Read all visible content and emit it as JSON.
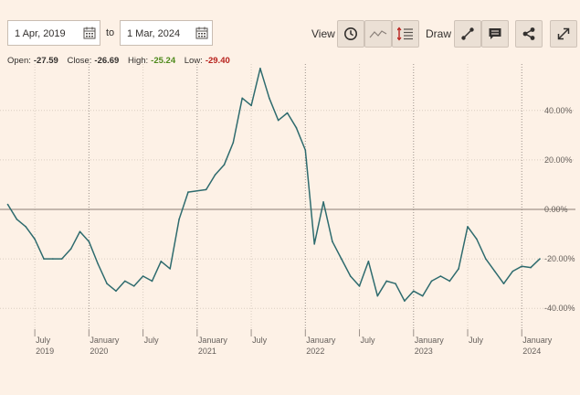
{
  "controls": {
    "date_from": "1 Apr, 2019",
    "to_label": "to",
    "date_to": "1 Mar, 2024",
    "view_label": "View",
    "draw_label": "Draw"
  },
  "ohlc": {
    "open_label": "Open:",
    "open": "-27.59",
    "close_label": "Close:",
    "close": "-26.69",
    "high_label": "High:",
    "high": "-25.24",
    "low_label": "Low:",
    "low": "-29.40"
  },
  "colors": {
    "background": "#fdf1e6",
    "line": "#2e6b6e",
    "high": "#4e8a1c",
    "low": "#b8221d",
    "zero_line": "#8a7d74"
  },
  "icons": [
    "calendar-icon",
    "clock-icon",
    "line-chart-icon",
    "indicators-icon",
    "draw-line-icon",
    "annotation-icon",
    "share-icon",
    "expand-icon"
  ],
  "chart_data": {
    "type": "line",
    "title": "",
    "xlabel": "",
    "ylabel": "",
    "ylim": [
      -45,
      57
    ],
    "grid": true,
    "y_ticks": [
      40,
      20,
      0,
      -20,
      -40
    ],
    "y_tick_labels": [
      "40.00%",
      "20.00%",
      "0.00%",
      "-20.00%",
      "-40.00%"
    ],
    "x_ticks": [
      {
        "date": "2019-07",
        "label": "July",
        "sublabel": "2019"
      },
      {
        "date": "2020-01",
        "label": "January",
        "sublabel": "2020"
      },
      {
        "date": "2020-07",
        "label": "July",
        "sublabel": ""
      },
      {
        "date": "2021-01",
        "label": "January",
        "sublabel": "2021"
      },
      {
        "date": "2021-07",
        "label": "July",
        "sublabel": ""
      },
      {
        "date": "2022-01",
        "label": "January",
        "sublabel": "2022"
      },
      {
        "date": "2022-07",
        "label": "July",
        "sublabel": ""
      },
      {
        "date": "2023-01",
        "label": "January",
        "sublabel": "2023"
      },
      {
        "date": "2023-07",
        "label": "July",
        "sublabel": ""
      },
      {
        "date": "2024-01",
        "label": "January",
        "sublabel": "2024"
      }
    ],
    "x": [
      "2019-04",
      "2019-05",
      "2019-06",
      "2019-07",
      "2019-08",
      "2019-09",
      "2019-10",
      "2019-11",
      "2019-12",
      "2020-01",
      "2020-02",
      "2020-03",
      "2020-04",
      "2020-05",
      "2020-06",
      "2020-07",
      "2020-08",
      "2020-09",
      "2020-10",
      "2020-11",
      "2020-12",
      "2021-01",
      "2021-02",
      "2021-03",
      "2021-04",
      "2021-05",
      "2021-06",
      "2021-07",
      "2021-08",
      "2021-09",
      "2021-10",
      "2021-11",
      "2021-12",
      "2022-01",
      "2022-02",
      "2022-03",
      "2022-04",
      "2022-05",
      "2022-06",
      "2022-07",
      "2022-08",
      "2022-09",
      "2022-10",
      "2022-11",
      "2022-12",
      "2023-01",
      "2023-02",
      "2023-03",
      "2023-04",
      "2023-05",
      "2023-06",
      "2023-07",
      "2023-08",
      "2023-09",
      "2023-10",
      "2023-11",
      "2023-12",
      "2024-01",
      "2024-02",
      "2024-03"
    ],
    "series": [
      {
        "values": [
          2,
          -4,
          -7,
          -12,
          -20,
          -20,
          -20,
          -16,
          -9,
          -13,
          -22,
          -30,
          -33,
          -29,
          -31,
          -27,
          -29,
          -21,
          -24,
          -4,
          7,
          7.5,
          8,
          14,
          18,
          27,
          45,
          42,
          57,
          45,
          36,
          39,
          33,
          24,
          -14,
          3,
          -13,
          -20,
          -27,
          -31,
          -21,
          -35,
          -29,
          -30,
          -37,
          -33,
          -35,
          -29,
          -27,
          -29,
          -24,
          -7,
          -12,
          -20,
          -25,
          -30,
          -25,
          -23,
          -23.5,
          -20
        ]
      }
    ]
  }
}
